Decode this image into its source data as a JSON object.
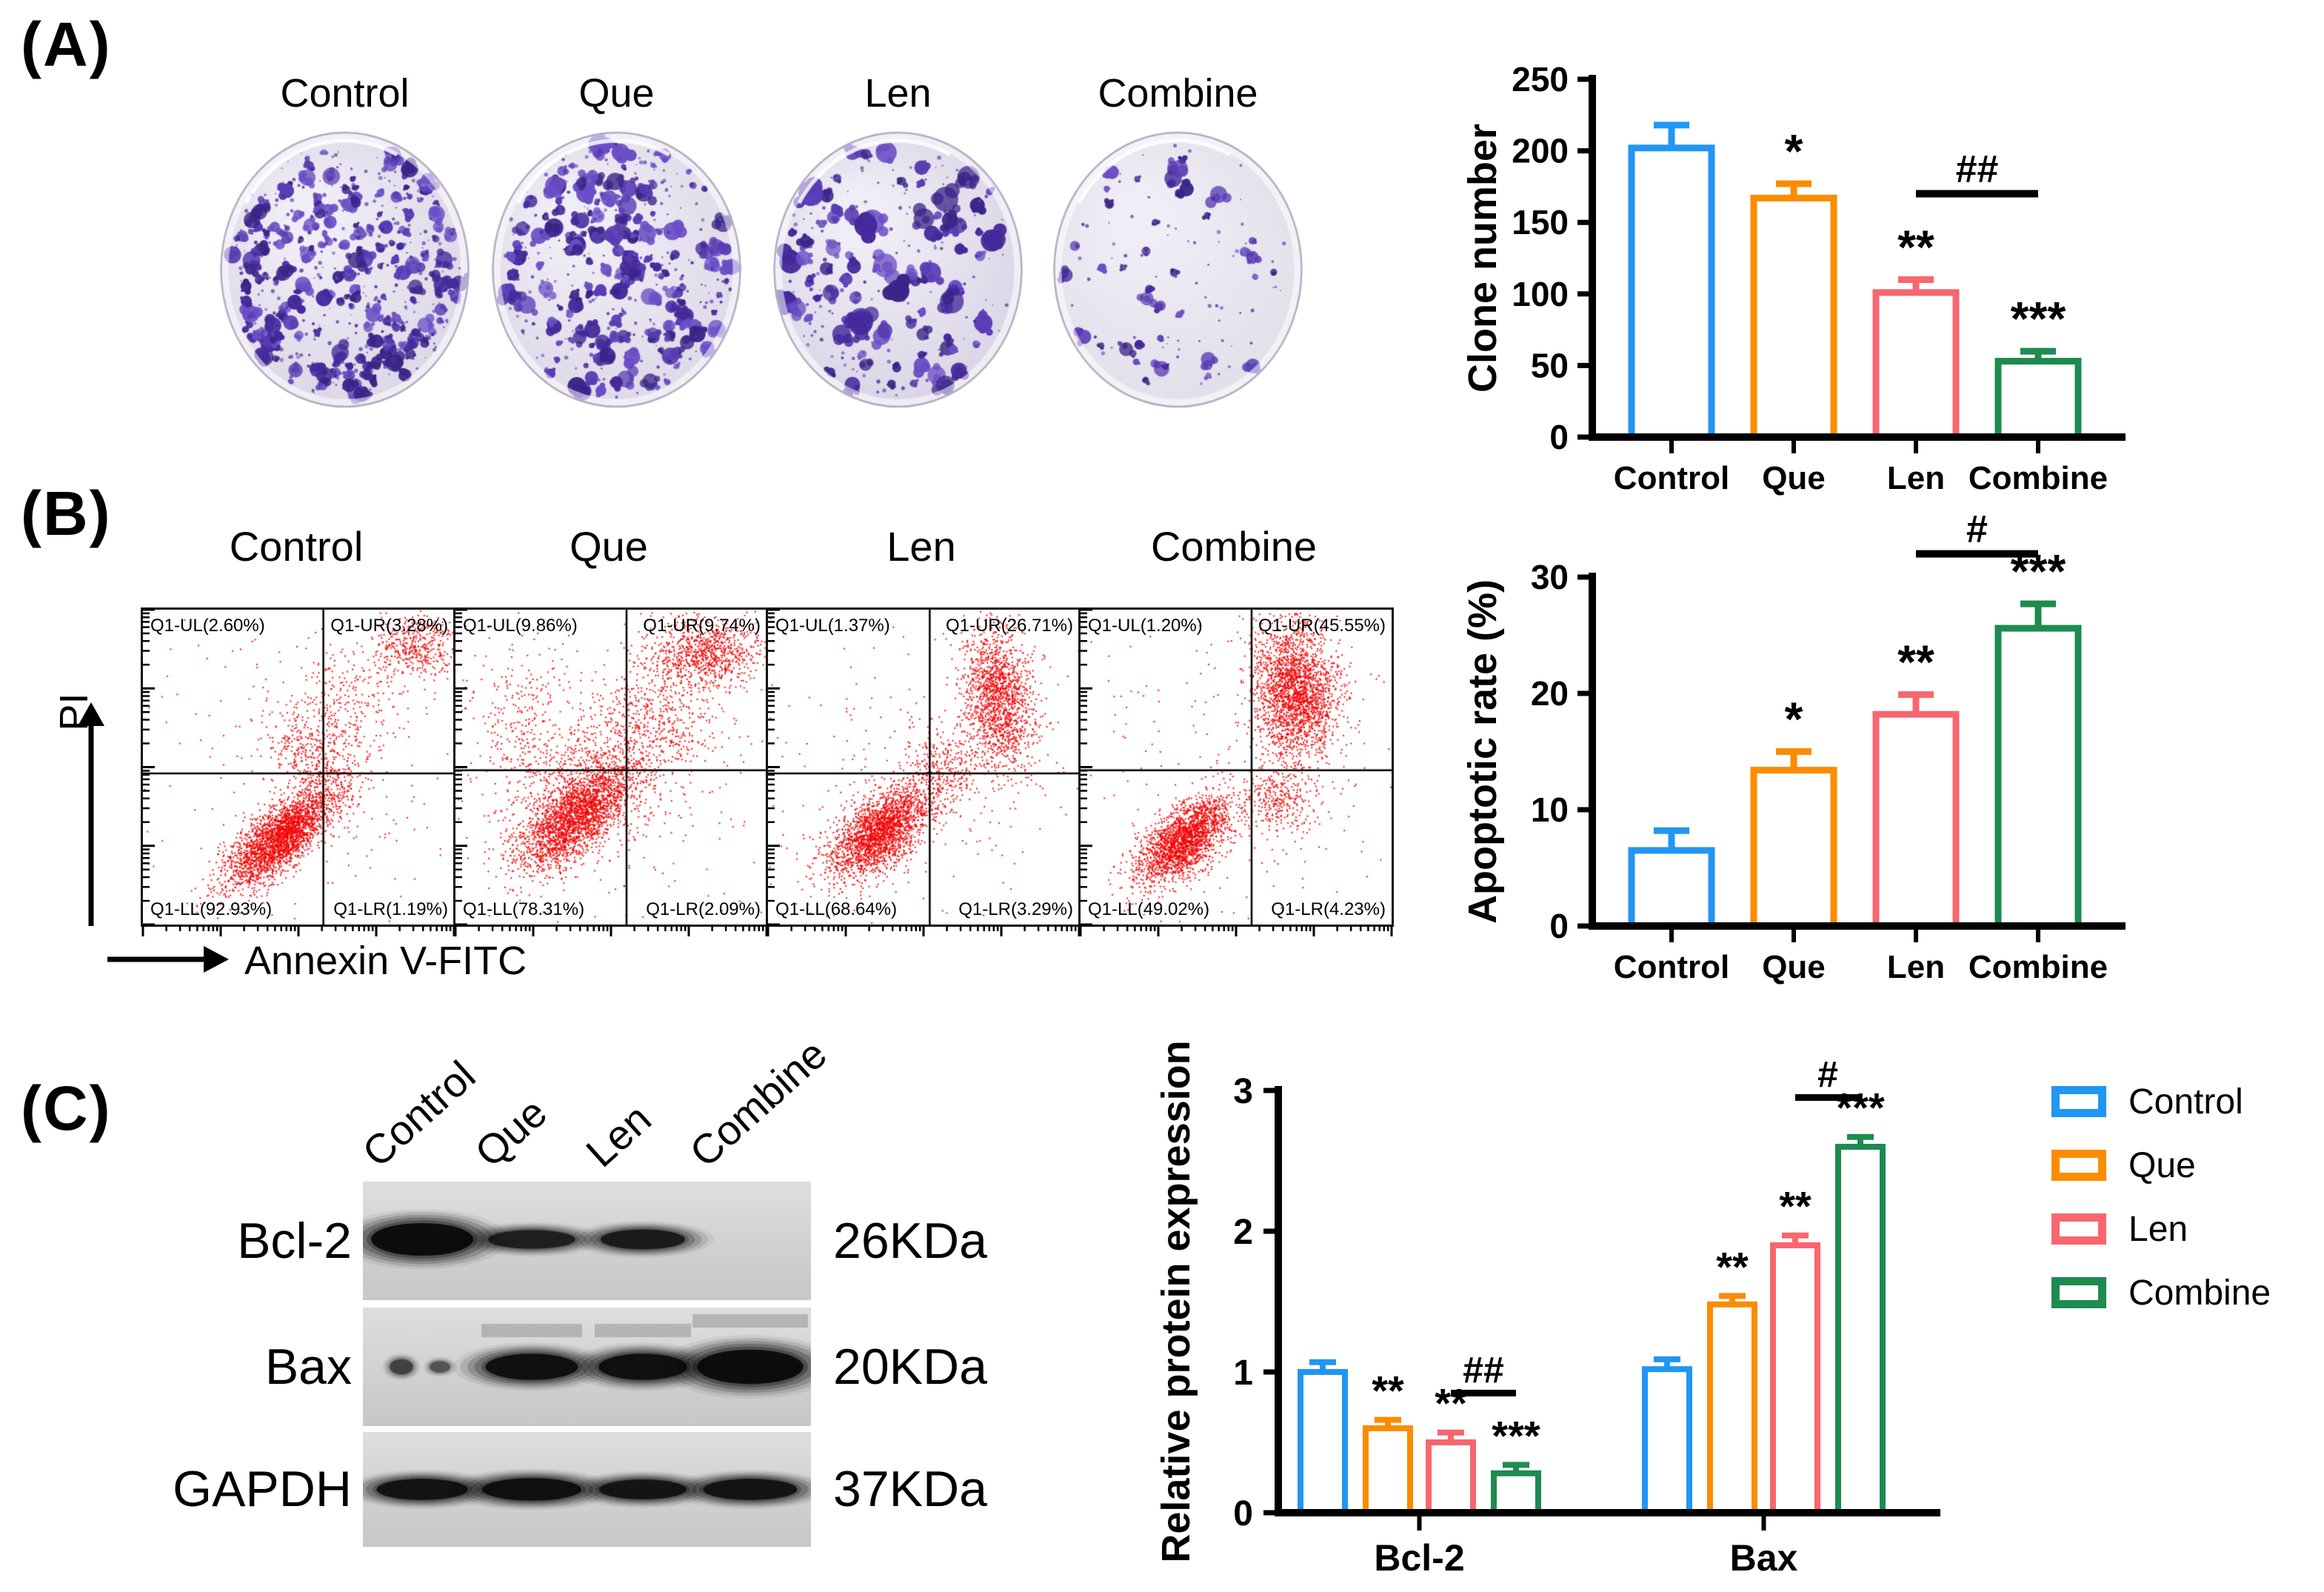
{
  "figure": {
    "panels": {
      "a": {
        "label": "(A)",
        "dish_labels": [
          "Control",
          "Que",
          "Len",
          "Combine"
        ]
      },
      "b": {
        "label": "(B)",
        "plots": [
          {
            "title": "Control",
            "ul": "Q1-UL(2.60%)",
            "ur": "Q1-UR(3.28%)",
            "ll": "Q1-LL(92.93%)",
            "lr": "Q1-LR(1.19%)"
          },
          {
            "title": "Que",
            "ul": "Q1-UL(9.86%)",
            "ur": "Q1-UR(9.74%)",
            "ll": "Q1-LL(78.31%)",
            "lr": "Q1-LR(2.09%)"
          },
          {
            "title": "Len",
            "ul": "Q1-UL(1.37%)",
            "ur": "Q1-UR(26.71%)",
            "ll": "Q1-LL(68.64%)",
            "lr": "Q1-LR(3.29%)"
          },
          {
            "title": "Combine",
            "ul": "Q1-UL(1.20%)",
            "ur": "Q1-UR(45.55%)",
            "ll": "Q1-LL(49.02%)",
            "lr": "Q1-LR(4.23%)"
          }
        ],
        "x_axis": "Annexin V-FITC",
        "y_axis": "PI"
      },
      "c": {
        "label": "(C)",
        "lane_labels": [
          "Control",
          "Que",
          "Len",
          "Combine"
        ],
        "blots": [
          {
            "protein": "Bcl-2",
            "size": "26KDa"
          },
          {
            "protein": "Bax",
            "size": "20KDa"
          },
          {
            "protein": "GAPDH",
            "size": "37KDa"
          }
        ]
      }
    },
    "colors": {
      "control": "#2196F3",
      "que": "#FB8C00",
      "len": "#F8666F",
      "combine": "#1E8B4F",
      "scatter": "#F30000",
      "colony": "#4A2D9E"
    }
  },
  "chart_data": [
    {
      "type": "bar",
      "panel": "A",
      "ylabel": "Clone number",
      "categories": [
        "Control",
        "Que",
        "Len",
        "Combine"
      ],
      "values": [
        202,
        167,
        101,
        53
      ],
      "errors": [
        16,
        10,
        9,
        7
      ],
      "sig": [
        "",
        "*",
        "**",
        "***"
      ],
      "bracket": {
        "label": "##",
        "from": 2,
        "to": 3,
        "y": 170
      },
      "ylim": [
        0,
        250
      ],
      "yticks": [
        0,
        50,
        100,
        150,
        200,
        250
      ],
      "grid": false,
      "legend_position": "none"
    },
    {
      "type": "bar",
      "panel": "B",
      "ylabel": "Apoptotic rate (%)",
      "categories": [
        "Control",
        "Que",
        "Len",
        "Combine"
      ],
      "values": [
        6.5,
        13.4,
        18.2,
        25.6
      ],
      "errors": [
        1.7,
        1.6,
        1.7,
        2.1
      ],
      "sig": [
        "",
        "*",
        "**",
        "***"
      ],
      "bracket": {
        "label": "#",
        "from": 2,
        "to": 3,
        "y": 32
      },
      "ylim": [
        0,
        30
      ],
      "yticks": [
        0,
        10,
        20,
        30
      ],
      "grid": false,
      "legend_position": "none"
    },
    {
      "type": "grouped-bar",
      "panel": "C",
      "ylabel": "Relative protein expression",
      "categories": [
        "Bcl-2",
        "Bax"
      ],
      "series": [
        {
          "name": "Control",
          "values": [
            1.0,
            1.02
          ],
          "errors": [
            0.07,
            0.07
          ]
        },
        {
          "name": "Que",
          "values": [
            0.6,
            1.48
          ],
          "errors": [
            0.06,
            0.06
          ]
        },
        {
          "name": "Len",
          "values": [
            0.5,
            1.9
          ],
          "errors": [
            0.07,
            0.07
          ]
        },
        {
          "name": "Combine",
          "values": [
            0.28,
            2.6
          ],
          "errors": [
            0.06,
            0.07
          ]
        }
      ],
      "sig": [
        [
          "",
          "**",
          "**",
          "***"
        ],
        [
          "",
          "**",
          "**",
          "***"
        ]
      ],
      "brackets": [
        {
          "group": 0,
          "label": "##",
          "from": 2,
          "to": 3,
          "y": 0.85
        },
        {
          "group": 1,
          "label": "#",
          "from": 2,
          "to": 3,
          "y": 2.95
        }
      ],
      "ylim": [
        0,
        3
      ],
      "yticks": [
        0,
        1,
        2,
        3
      ],
      "grid": false,
      "legend_position": "right"
    }
  ]
}
